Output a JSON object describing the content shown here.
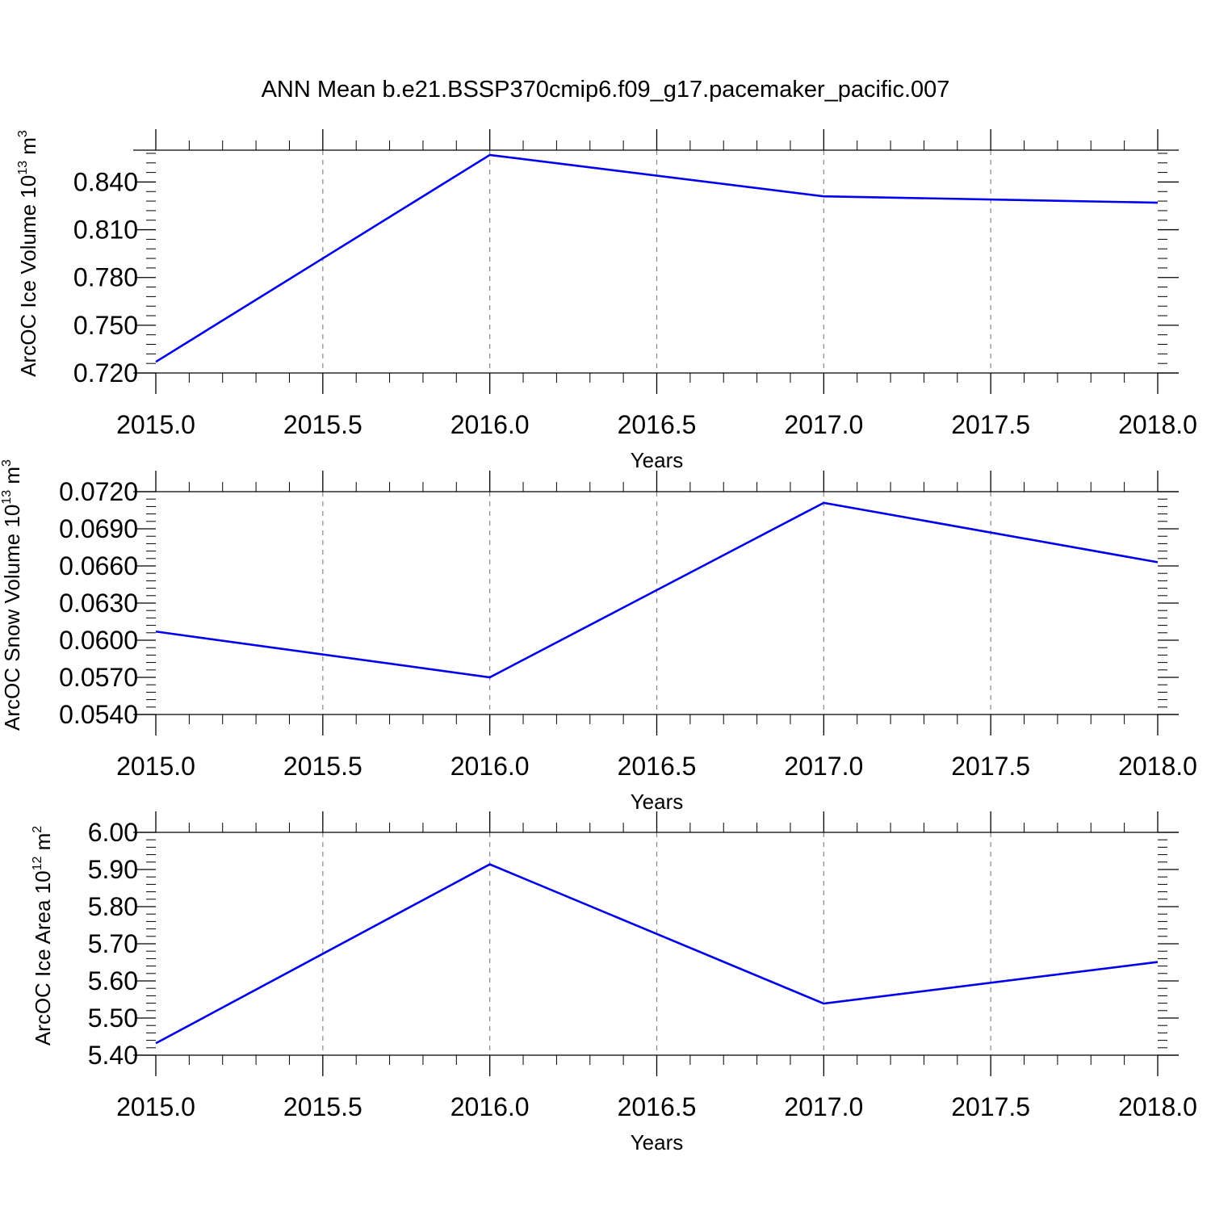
{
  "figure": {
    "title": "ANN Mean b.e21.BSSP370cmip6.f09_g17.pacemaker_pacific.007",
    "line_color": "#0000ee",
    "grid_color": "#888888"
  },
  "chart_data": [
    {
      "type": "line",
      "title": "",
      "xlabel": "Years",
      "ylabel": {
        "text": "ArcOC Ice Volume 10",
        "exp": "13",
        "unit": " m",
        "unit_exp": "3"
      },
      "xlim": [
        2015.0,
        2018.0
      ],
      "ylim": [
        0.72,
        0.86
      ],
      "xticks": [
        "2015.0",
        "2015.5",
        "2016.0",
        "2016.5",
        "2017.0",
        "2017.5",
        "2018.0"
      ],
      "xtick_values": [
        2015.0,
        2015.5,
        2016.0,
        2016.5,
        2017.0,
        2017.5,
        2018.0
      ],
      "yticks": [
        "0.720",
        "0.750",
        "0.780",
        "0.810",
        "0.840"
      ],
      "ytick_values": [
        0.72,
        0.75,
        0.78,
        0.81,
        0.84
      ],
      "grid": "vertical dashed at major x ticks",
      "series": [
        {
          "x": [
            2015.0,
            2016.0,
            2017.0,
            2018.0
          ],
          "values": [
            0.727,
            0.857,
            0.831,
            0.827
          ]
        }
      ]
    },
    {
      "type": "line",
      "title": "",
      "xlabel": "Years",
      "ylabel": {
        "text": "ArcOC Snow Volume 10",
        "exp": "13",
        "unit": " m",
        "unit_exp": "3"
      },
      "xlim": [
        2015.0,
        2018.0
      ],
      "ylim": [
        0.054,
        0.072
      ],
      "xticks": [
        "2015.0",
        "2015.5",
        "2016.0",
        "2016.5",
        "2017.0",
        "2017.5",
        "2018.0"
      ],
      "xtick_values": [
        2015.0,
        2015.5,
        2016.0,
        2016.5,
        2017.0,
        2017.5,
        2018.0
      ],
      "yticks": [
        "0.0540",
        "0.0570",
        "0.0600",
        "0.0630",
        "0.0660",
        "0.0690",
        "0.0720"
      ],
      "ytick_values": [
        0.054,
        0.057,
        0.06,
        0.063,
        0.066,
        0.069,
        0.072
      ],
      "grid": "vertical dashed at major x ticks",
      "series": [
        {
          "x": [
            2015.0,
            2016.0,
            2017.0,
            2018.0
          ],
          "values": [
            0.0607,
            0.057,
            0.0711,
            0.0663
          ]
        }
      ]
    },
    {
      "type": "line",
      "title": "",
      "xlabel": "Years",
      "ylabel": {
        "text": "ArcOC Ice Area 10",
        "exp": "12",
        "unit": " m",
        "unit_exp": "2"
      },
      "xlim": [
        2015.0,
        2018.0
      ],
      "ylim": [
        5.4,
        6.0
      ],
      "xticks": [
        "2015.0",
        "2015.5",
        "2016.0",
        "2016.5",
        "2017.0",
        "2017.5",
        "2018.0"
      ],
      "xtick_values": [
        2015.0,
        2015.5,
        2016.0,
        2016.5,
        2017.0,
        2017.5,
        2018.0
      ],
      "yticks": [
        "5.40",
        "5.50",
        "5.60",
        "5.70",
        "5.80",
        "5.90",
        "6.00"
      ],
      "ytick_values": [
        5.4,
        5.5,
        5.6,
        5.7,
        5.8,
        5.9,
        6.0
      ],
      "grid": "vertical dashed at major x ticks",
      "series": [
        {
          "x": [
            2015.0,
            2016.0,
            2017.0,
            2018.0
          ],
          "values": [
            5.432,
            5.914,
            5.539,
            5.651
          ]
        }
      ]
    }
  ]
}
